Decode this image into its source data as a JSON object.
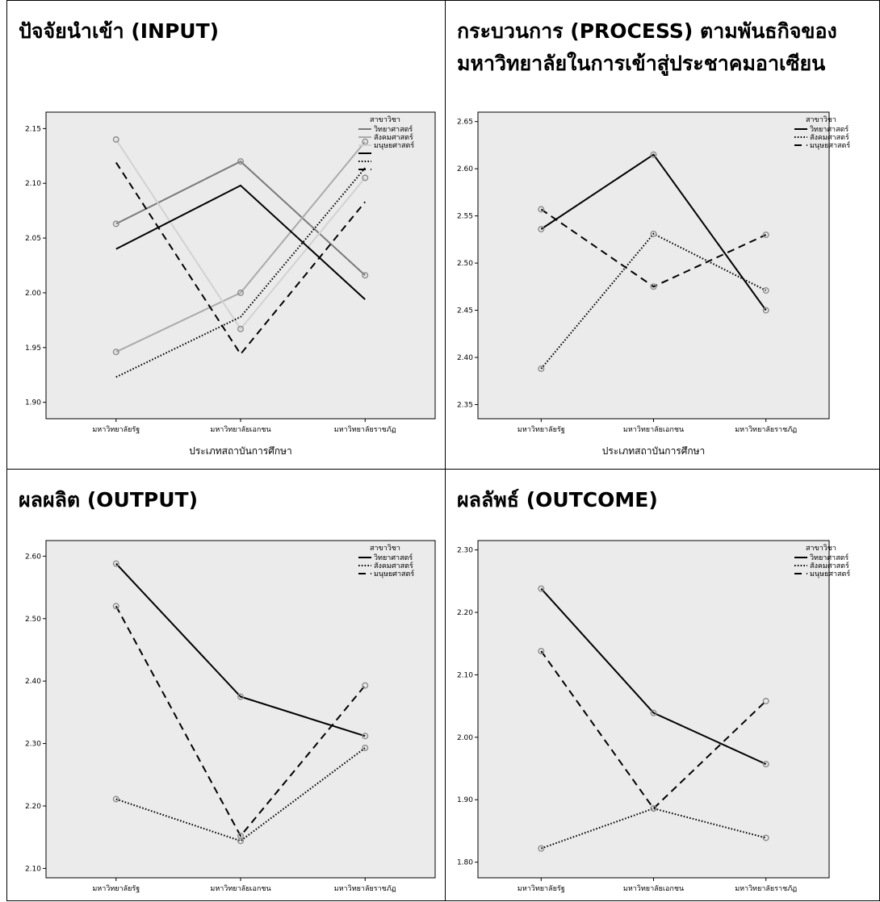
{
  "panels": [
    {
      "title": "ปัจจัยนำเข้า (INPUT)",
      "x_axis_title": "ประเภทสถาบันการศึกษา"
    },
    {
      "title": "กระบวนการ (PROCESS) ตามพันธกิจของมหาวิทยาลัยในการเข้าสู่ประชาคมอาเซียน",
      "x_axis_title": "ประเภทสถาบันการศึกษา"
    },
    {
      "title": "ผลผลิต (OUTPUT)",
      "x_axis_title": ""
    },
    {
      "title": "ผลลัพธ์ (OUTCOME)",
      "x_axis_title": ""
    }
  ],
  "chart_data": [
    {
      "type": "line",
      "title": "ปัจจัยนำเข้า (INPUT)",
      "xlabel": "ประเภทสถาบันการศึกษา",
      "ylabel": "",
      "categories": [
        "มหาวิทยาลัยรัฐ",
        "มหาวิทยาลัยเอกชน",
        "มหาวิทยาลัยราชภัฏ"
      ],
      "ylim": [
        1.885,
        2.165
      ],
      "yticks": [
        1.9,
        1.95,
        2.0,
        2.05,
        2.1,
        2.15
      ],
      "ytick_labels": [
        "1.90",
        "1.95",
        "2.00",
        "2.05",
        "2.10",
        "2.15"
      ],
      "legend_title": "สาขาวิชา",
      "legend_position": "right",
      "series": [
        {
          "name": "วิทยาศาสตร์",
          "values": [
            2.063,
            2.12,
            2.016
          ],
          "style": "solid",
          "color": "#7a7a7a",
          "markers": true
        },
        {
          "name": "สังคมศาสตร์",
          "values": [
            1.946,
            2.0,
            2.138
          ],
          "style": "solid",
          "color": "#ababab",
          "markers": true
        },
        {
          "name": "มนุษยศาสตร์",
          "values": [
            2.14,
            1.967,
            2.105
          ],
          "style": "solid",
          "color": "#d2d2d2",
          "markers": true
        },
        {
          "values": [
            2.04,
            2.098,
            1.994
          ],
          "style": "solid",
          "color": "#000000",
          "markers": false
        },
        {
          "values": [
            1.923,
            1.978,
            2.114
          ],
          "style": "dotted",
          "color": "#000000",
          "markers": false
        },
        {
          "values": [
            2.119,
            1.944,
            2.083
          ],
          "style": "dashed",
          "color": "#000000",
          "markers": false
        }
      ],
      "grid": false
    },
    {
      "type": "line",
      "title": "กระบวนการ (PROCESS) ตามพันธกิจของมหาวิทยาลัยในการเข้าสู่ประชาคมอาเซียน",
      "xlabel": "ประเภทสถาบันการศึกษา",
      "ylabel": "",
      "categories": [
        "มหาวิทยาลัยรัฐ",
        "มหาวิทยาลัยเอกชน",
        "มหาวิทยาลัยราชภัฏ"
      ],
      "ylim": [
        2.335,
        2.66
      ],
      "yticks": [
        2.35,
        2.4,
        2.45,
        2.5,
        2.55,
        2.6,
        2.65
      ],
      "ytick_labels": [
        "2.35",
        "2.40",
        "2.45",
        "2.50",
        "2.55",
        "2.60",
        "2.65"
      ],
      "legend_title": "สาขาวิชา",
      "legend_position": "right",
      "series": [
        {
          "name": "วิทยาศาสตร์",
          "values": [
            2.536,
            2.615,
            2.45
          ],
          "style": "solid",
          "color": "#000000",
          "markers": true
        },
        {
          "name": "สังคมศาสตร์",
          "values": [
            2.388,
            2.531,
            2.471
          ],
          "style": "dotted",
          "color": "#000000",
          "markers": true
        },
        {
          "name": "มนุษยศาสตร์",
          "values": [
            2.557,
            2.475,
            2.53
          ],
          "style": "dashed",
          "color": "#000000",
          "markers": true
        }
      ],
      "grid": false
    },
    {
      "type": "line",
      "title": "ผลผลิต (OUTPUT)",
      "xlabel": "",
      "ylabel": "",
      "categories": [
        "มหาวิทยาลัยรัฐ",
        "มหาวิทยาลัยเอกชน",
        "มหาวิทยาลัยราชภัฏ"
      ],
      "ylim": [
        2.085,
        2.625
      ],
      "yticks": [
        2.1,
        2.2,
        2.3,
        2.4,
        2.5,
        2.6
      ],
      "ytick_labels": [
        "2.10",
        "2.20",
        "2.30",
        "2.40",
        "2.50",
        "2.60"
      ],
      "legend_title": "สาขาวิชา",
      "legend_position": "right",
      "series": [
        {
          "name": "วิทยาศาสตร์",
          "values": [
            2.588,
            2.375,
            2.312
          ],
          "style": "solid",
          "color": "#000000",
          "markers": true
        },
        {
          "name": "สังคมศาสตร์",
          "values": [
            2.211,
            2.144,
            2.293
          ],
          "style": "dotted",
          "color": "#000000",
          "markers": true
        },
        {
          "name": "มนุษยศาสตร์",
          "values": [
            2.52,
            2.152,
            2.393
          ],
          "style": "dashed",
          "color": "#000000",
          "markers": true
        }
      ],
      "grid": false
    },
    {
      "type": "line",
      "title": "ผลลัพธ์ (OUTCOME)",
      "xlabel": "",
      "ylabel": "",
      "categories": [
        "มหาวิทยาลัยรัฐ",
        "มหาวิทยาลัยเอกชน",
        "มหาวิทยาลัยราชภัฏ"
      ],
      "ylim": [
        1.775,
        2.315
      ],
      "yticks": [
        1.8,
        1.9,
        2.0,
        2.1,
        2.2,
        2.3
      ],
      "ytick_labels": [
        "1.80",
        "1.90",
        "2.00",
        "2.10",
        "2.20",
        "2.30"
      ],
      "legend_title": "สาขาวิชา",
      "legend_position": "right",
      "series": [
        {
          "name": "วิทยาศาสตร์",
          "values": [
            2.238,
            2.039,
            1.957
          ],
          "style": "solid",
          "color": "#000000",
          "markers": true
        },
        {
          "name": "สังคมศาสตร์",
          "values": [
            1.822,
            1.886,
            1.839
          ],
          "style": "dotted",
          "color": "#000000",
          "markers": true
        },
        {
          "name": "มนุษยศาสตร์",
          "values": [
            2.138,
            1.886,
            2.058
          ],
          "style": "dashed",
          "color": "#000000",
          "markers": true
        }
      ],
      "grid": false
    }
  ],
  "colors": {
    "plot_background": "#ebebeb",
    "page_background": "#ffffff",
    "axis": "#000000"
  }
}
